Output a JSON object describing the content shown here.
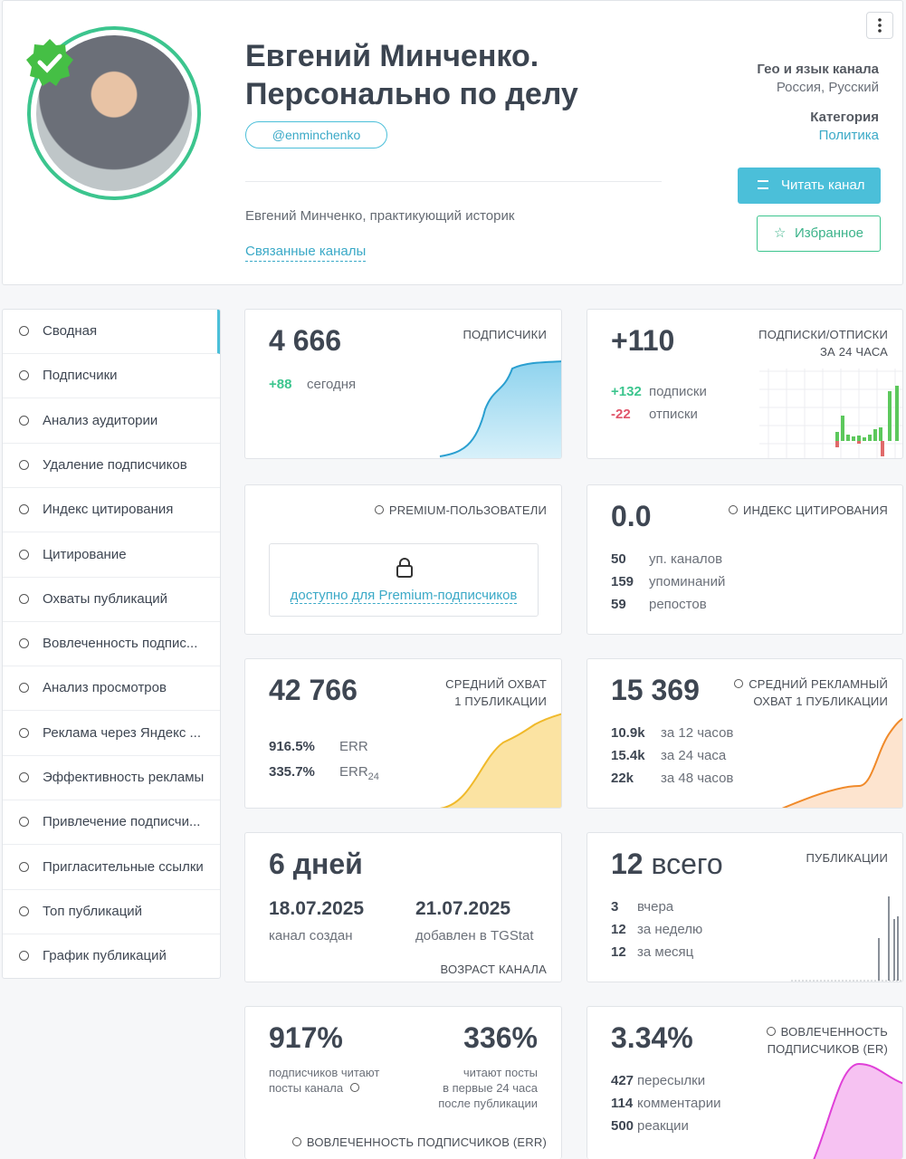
{
  "header": {
    "title_lines": [
      "Евгений Минченко.",
      "Персонально по делу"
    ],
    "handle": "@enminchenko",
    "description": "Евгений Минченко, практикующий историк",
    "related_link": "Связанные каналы",
    "geo_label": "Гео и язык канала",
    "geo_value": "Россия, Русский",
    "category_label": "Категория",
    "category_value": "Политика",
    "read_button": "Читать канал",
    "favorite_button": "Избранное"
  },
  "sidebar": {
    "items": [
      "Сводная",
      "Подписчики",
      "Анализ аудитории",
      "Удаление подписчиков",
      "Индекс цитирования",
      "Цитирование",
      "Охваты публикаций",
      "Вовлеченность подпис...",
      "Анализ просмотров",
      "Реклама через Яндекс ...",
      "Эффективность рекламы",
      "Привлечение подписчи...",
      "Пригласительные ссылки",
      "Топ публикаций",
      "График публикаций"
    ]
  },
  "cards": {
    "subscribers": {
      "value": "4 666",
      "label": "ПОДПИСЧИКИ",
      "today_value": "+88",
      "today_label": "сегодня"
    },
    "subs_unsubs": {
      "value": "+110",
      "label_lines": [
        "ПОДПИСКИ/ОТПИСКИ",
        "ЗА 24 ЧАСА"
      ],
      "rows": [
        [
          "+132",
          "подписки"
        ],
        [
          "-22",
          "отписки"
        ]
      ]
    },
    "premium": {
      "label": "PREMIUM-ПОЛЬЗОВАТЕЛИ",
      "link": "доступно для Premium-подписчиков"
    },
    "citation": {
      "value": "0.0",
      "label": "ИНДЕКС ЦИТИРОВАНИЯ",
      "rows": [
        [
          "50",
          "уп. каналов"
        ],
        [
          "159",
          "упоминаний"
        ],
        [
          "59",
          "репостов"
        ]
      ]
    },
    "reach": {
      "value": "42 766",
      "label_lines": [
        "СРЕДНИЙ ОХВАТ",
        "1 ПУБЛИКАЦИИ"
      ],
      "rows": [
        [
          "916.5%",
          "ERR"
        ],
        [
          "335.7%",
          "ERR",
          "24"
        ]
      ]
    },
    "ad_reach": {
      "value": "15 369",
      "label_lines": [
        "СРЕДНИЙ РЕКЛАМНЫЙ",
        "ОХВАТ 1 ПУБЛИКАЦИИ"
      ],
      "rows": [
        [
          "10.9k",
          "за 12 часов"
        ],
        [
          "15.4k",
          "за 24 часа"
        ],
        [
          "22k",
          "за 48 часов"
        ]
      ]
    },
    "age": {
      "value": "6 дней",
      "created_date": "18.07.2025",
      "created_label": "канал создан",
      "added_date": "21.07.2025",
      "added_label": "добавлен в TGStat",
      "label": "ВОЗРАСТ КАНАЛА"
    },
    "posts": {
      "value": "12",
      "value_suffix": "всего",
      "label": "ПУБЛИКАЦИИ",
      "rows": [
        [
          "3",
          "вчера"
        ],
        [
          "12",
          "за неделю"
        ],
        [
          "12",
          "за месяц"
        ]
      ]
    },
    "err": {
      "left_value": "917%",
      "left_text_lines": [
        "подписчиков читают",
        "посты канала"
      ],
      "right_value": "336%",
      "right_text_lines": [
        "читают посты",
        "в первые 24 часа",
        "после публикации"
      ],
      "label": "ВОВЛЕЧЕННОСТЬ ПОДПИСЧИКОВ (ERR)"
    },
    "er": {
      "value": "3.34%",
      "label_lines": [
        "ВОВЛЕЧЕННОСТЬ",
        "ПОДПИСЧИКОВ (ER)"
      ],
      "rows": [
        [
          "427",
          "пересылки"
        ],
        [
          "114",
          "комментарии"
        ],
        [
          "500",
          "реакции"
        ]
      ]
    }
  }
}
